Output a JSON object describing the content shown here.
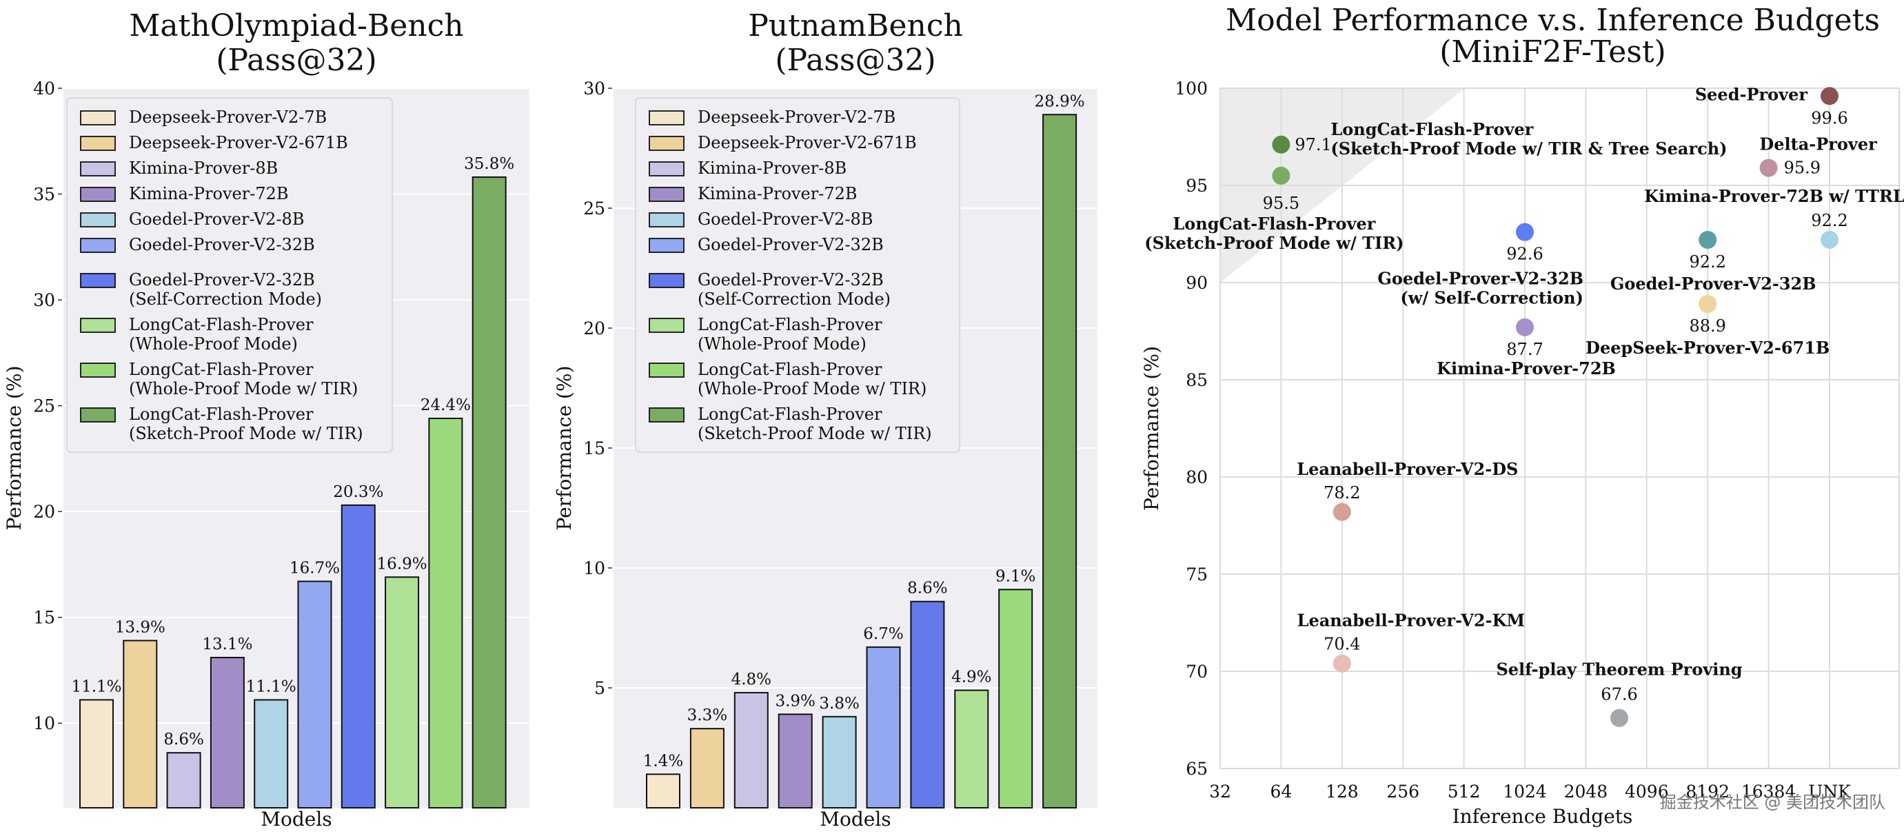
{
  "legend_entries": [
    {
      "label": "Deepseek-Prover-V2-7B",
      "color": "#f5e7cb"
    },
    {
      "label": "Deepseek-Prover-V2-671B",
      "color": "#edd29e"
    },
    {
      "label": "Kimina-Prover-8B",
      "color": "#c9c3e6"
    },
    {
      "label": "Kimina-Prover-72B",
      "color": "#a18ec7"
    },
    {
      "label": "Goedel-Prover-V2-8B",
      "color": "#aed4e6"
    },
    {
      "label": "Goedel-Prover-V2-32B",
      "color": "#94a8f2"
    },
    {
      "label": "Goedel-Prover-V2-32B\n(Self-Correction Mode)",
      "color": "#6479ec"
    },
    {
      "label": "LongCat-Flash-Prover\n(Whole-Proof Mode)",
      "color": "#aee195"
    },
    {
      "label": "LongCat-Flash-Prover\n(Whole-Proof Mode w/ TIR)",
      "color": "#9cd97c"
    },
    {
      "label": "LongCat-Flash-Prover\n(Sketch-Proof Mode w/ TIR)",
      "color": "#7aac64"
    }
  ],
  "chart_data": [
    {
      "type": "bar",
      "title": "MathOlympiad-Bench\n(Pass@32)",
      "xlabel": "Models",
      "ylabel": "Performance (%)",
      "ylim": [
        6,
        40
      ],
      "yticks": [
        10,
        15,
        20,
        25,
        30,
        35,
        40
      ],
      "grid": true,
      "legend": "top-left",
      "categories": [
        "Deepseek-Prover-V2-7B",
        "Deepseek-Prover-V2-671B",
        "Kimina-Prover-8B",
        "Kimina-Prover-72B",
        "Goedel-Prover-V2-8B",
        "Goedel-Prover-V2-32B",
        "Goedel-Prover-V2-32B (Self-Correction Mode)",
        "LongCat-Flash-Prover (Whole-Proof Mode)",
        "LongCat-Flash-Prover (Whole-Proof Mode w/ TIR)",
        "LongCat-Flash-Prover (Sketch-Proof Mode w/ TIR)"
      ],
      "values": [
        11.1,
        13.9,
        8.6,
        13.1,
        11.1,
        16.7,
        20.3,
        16.9,
        24.4,
        35.8
      ],
      "value_labels": [
        "11.1%",
        "13.9%",
        "8.6%",
        "13.1%",
        "11.1%",
        "16.7%",
        "20.3%",
        "16.9%",
        "24.4%",
        "35.8%"
      ]
    },
    {
      "type": "bar",
      "title": "PutnamBench\n(Pass@32)",
      "xlabel": "Models",
      "ylabel": "Performance (%)",
      "ylim": [
        0,
        30
      ],
      "yticks": [
        5,
        10,
        15,
        20,
        25,
        30
      ],
      "grid": true,
      "legend": "top-left",
      "categories": [
        "Deepseek-Prover-V2-7B",
        "Deepseek-Prover-V2-671B",
        "Kimina-Prover-8B",
        "Kimina-Prover-72B",
        "Goedel-Prover-V2-8B",
        "Goedel-Prover-V2-32B",
        "Goedel-Prover-V2-32B (Self-Correction Mode)",
        "LongCat-Flash-Prover (Whole-Proof Mode)",
        "LongCat-Flash-Prover (Whole-Proof Mode w/ TIR)",
        "LongCat-Flash-Prover (Sketch-Proof Mode w/ TIR)"
      ],
      "values": [
        1.4,
        3.3,
        4.8,
        3.9,
        3.8,
        6.7,
        8.6,
        4.9,
        9.1,
        28.9
      ],
      "value_labels": [
        "1.4%",
        "3.3%",
        "4.8%",
        "3.9%",
        "3.8%",
        "6.7%",
        "8.6%",
        "4.9%",
        "9.1%",
        "28.9%"
      ]
    },
    {
      "type": "scatter",
      "title": "Model Performance v.s. Inference Budgets\n(MiniF2F-Test)",
      "xlabel": "Inference Budgets",
      "ylabel": "Performance (%)",
      "x_categories": [
        "32",
        "64",
        "128",
        "256",
        "512",
        "1024",
        "2048",
        "4096",
        "8192",
        "16384",
        "UNK"
      ],
      "ylim": [
        65,
        100
      ],
      "yticks": [
        65,
        70,
        75,
        80,
        85,
        90,
        95,
        100
      ],
      "grid": true,
      "points": [
        {
          "name": "Seed-Prover",
          "x": "UNK",
          "y": 99.6,
          "color": "#8b5252",
          "label_color": "#111111"
        },
        {
          "name": "LongCat-Flash-Prover\n(Sketch-Proof Mode w/ TIR & Tree Search)",
          "x": "64",
          "y": 97.1,
          "color": "#5a8a45",
          "label_color": "#5e8a4e"
        },
        {
          "name": "Delta-Prover",
          "x": "16384",
          "y": 95.9,
          "color": "#c0909f",
          "label_color": "#111111"
        },
        {
          "name": "LongCat-Flash-Prover\n(Sketch-Proof Mode w/ TIR)",
          "x": "64",
          "y": 95.5,
          "color": "#7aac64",
          "label_color": "#5e8a4e"
        },
        {
          "name": "Goedel-Prover-V2-32B\n(w/ Self-Correction)",
          "x": "1024",
          "y": 92.6,
          "color": "#5f7df2",
          "label_color": "#111111"
        },
        {
          "name": "Goedel-Prover-V2-32B",
          "x": "8192",
          "y": 92.2,
          "color": "#5c9ea3",
          "label_color": "#111111"
        },
        {
          "name": "Kimina-Prover-72B w/ TTRL",
          "x": "UNK",
          "y": 92.2,
          "color": "#a8d3e6",
          "label_color": "#111111"
        },
        {
          "name": "DeepSeek-Prover-V2-671B",
          "x": "8192",
          "y": 88.9,
          "color": "#ecd49c",
          "label_color": "#111111"
        },
        {
          "name": "Kimina-Prover-72B",
          "x": "1024",
          "y": 87.7,
          "color": "#a491cc",
          "label_color": "#111111"
        },
        {
          "name": "Leanabell-Prover-V2-DS",
          "x": "128",
          "y": 78.2,
          "color": "#d3a294",
          "label_color": "#111111"
        },
        {
          "name": "Leanabell-Prover-V2-KM",
          "x": "128",
          "y": 70.4,
          "color": "#e6beb4",
          "label_color": "#111111"
        },
        {
          "name": "Self-play Theorem Proving",
          "x": "2048-4096",
          "y": 67.6,
          "color": "#a2a7ab",
          "label_color": "#111111"
        }
      ]
    }
  ],
  "watermark": "掘金技术社区 @ 美团技术团队"
}
